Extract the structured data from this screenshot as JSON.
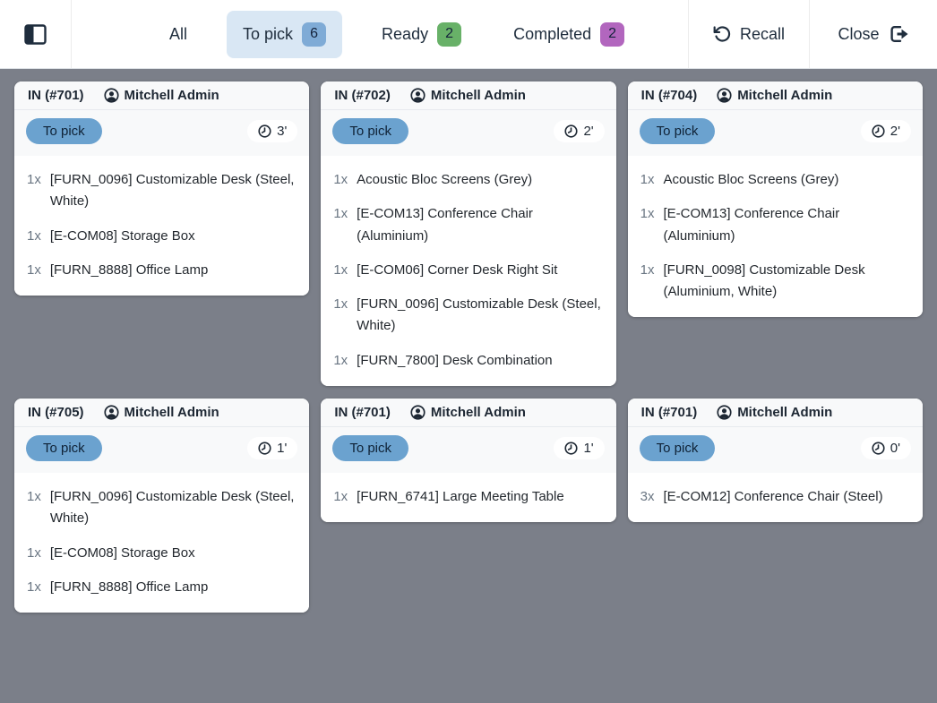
{
  "topbar": {
    "tabs": [
      {
        "label": "All"
      },
      {
        "label": "To pick",
        "count": "6",
        "active": true,
        "badge_color": "#7fabd6"
      },
      {
        "label": "Ready",
        "count": "2",
        "badge_color": "#68b168"
      },
      {
        "label": "Completed",
        "count": "2",
        "badge_color": "#b266be"
      }
    ],
    "recall_label": "Recall",
    "close_label": "Close"
  },
  "icons": {
    "sidebar_toggle": "sidebar-toggle-icon",
    "recall": "rotate-ccw-icon",
    "close": "sign-out-icon",
    "card_user": "user-circle-icon",
    "card_time": "clock-icon"
  },
  "colors": {
    "background": "#7b7f89",
    "topbar": "#ffffff",
    "card_header": "#f8f9fa",
    "tab_active": "#d9e7f4",
    "badge_blue": "#7fabd6",
    "badge_green": "#68b168",
    "badge_purple": "#b266be",
    "status_pill": "#6ba2cf",
    "text": "#1f2d3d"
  },
  "cards": [
    {
      "reference": "IN (#701)",
      "user": "Mitchell Admin",
      "status": "To pick",
      "time": "3'",
      "items": [
        {
          "qty": "1x",
          "name": "[FURN_0096] Customizable Desk (Steel, White)"
        },
        {
          "qty": "1x",
          "name": "[E-COM08] Storage Box"
        },
        {
          "qty": "1x",
          "name": "[FURN_8888] Office Lamp"
        }
      ]
    },
    {
      "reference": "IN (#702)",
      "user": "Mitchell Admin",
      "status": "To pick",
      "time": "2'",
      "items": [
        {
          "qty": "1x",
          "name": "Acoustic Bloc Screens (Grey)"
        },
        {
          "qty": "1x",
          "name": "[E-COM13] Conference Chair (Aluminium)"
        },
        {
          "qty": "1x",
          "name": "[E-COM06] Corner Desk Right Sit"
        },
        {
          "qty": "1x",
          "name": "[FURN_0096] Customizable Desk (Steel, White)"
        },
        {
          "qty": "1x",
          "name": "[FURN_7800] Desk Combination"
        }
      ]
    },
    {
      "reference": "IN (#704)",
      "user": "Mitchell Admin",
      "status": "To pick",
      "time": "2'",
      "items": [
        {
          "qty": "1x",
          "name": "Acoustic Bloc Screens (Grey)"
        },
        {
          "qty": "1x",
          "name": "[E-COM13] Conference Chair (Aluminium)"
        },
        {
          "qty": "1x",
          "name": "[FURN_0098] Customizable Desk (Aluminium, White)"
        }
      ]
    },
    {
      "reference": "IN (#705)",
      "user": "Mitchell Admin",
      "status": "To pick",
      "time": "1'",
      "items": [
        {
          "qty": "1x",
          "name": "[FURN_0096] Customizable Desk (Steel, White)"
        },
        {
          "qty": "1x",
          "name": "[E-COM08] Storage Box"
        },
        {
          "qty": "1x",
          "name": "[FURN_8888] Office Lamp"
        }
      ]
    },
    {
      "reference": "IN (#701)",
      "user": "Mitchell Admin",
      "status": "To pick",
      "time": "1'",
      "items": [
        {
          "qty": "1x",
          "name": "[FURN_6741] Large Meeting Table"
        }
      ]
    },
    {
      "reference": "IN (#701)",
      "user": "Mitchell Admin",
      "status": "To pick",
      "time": "0'",
      "items": [
        {
          "qty": "3x",
          "name": "[E-COM12] Conference Chair (Steel)"
        }
      ]
    }
  ]
}
